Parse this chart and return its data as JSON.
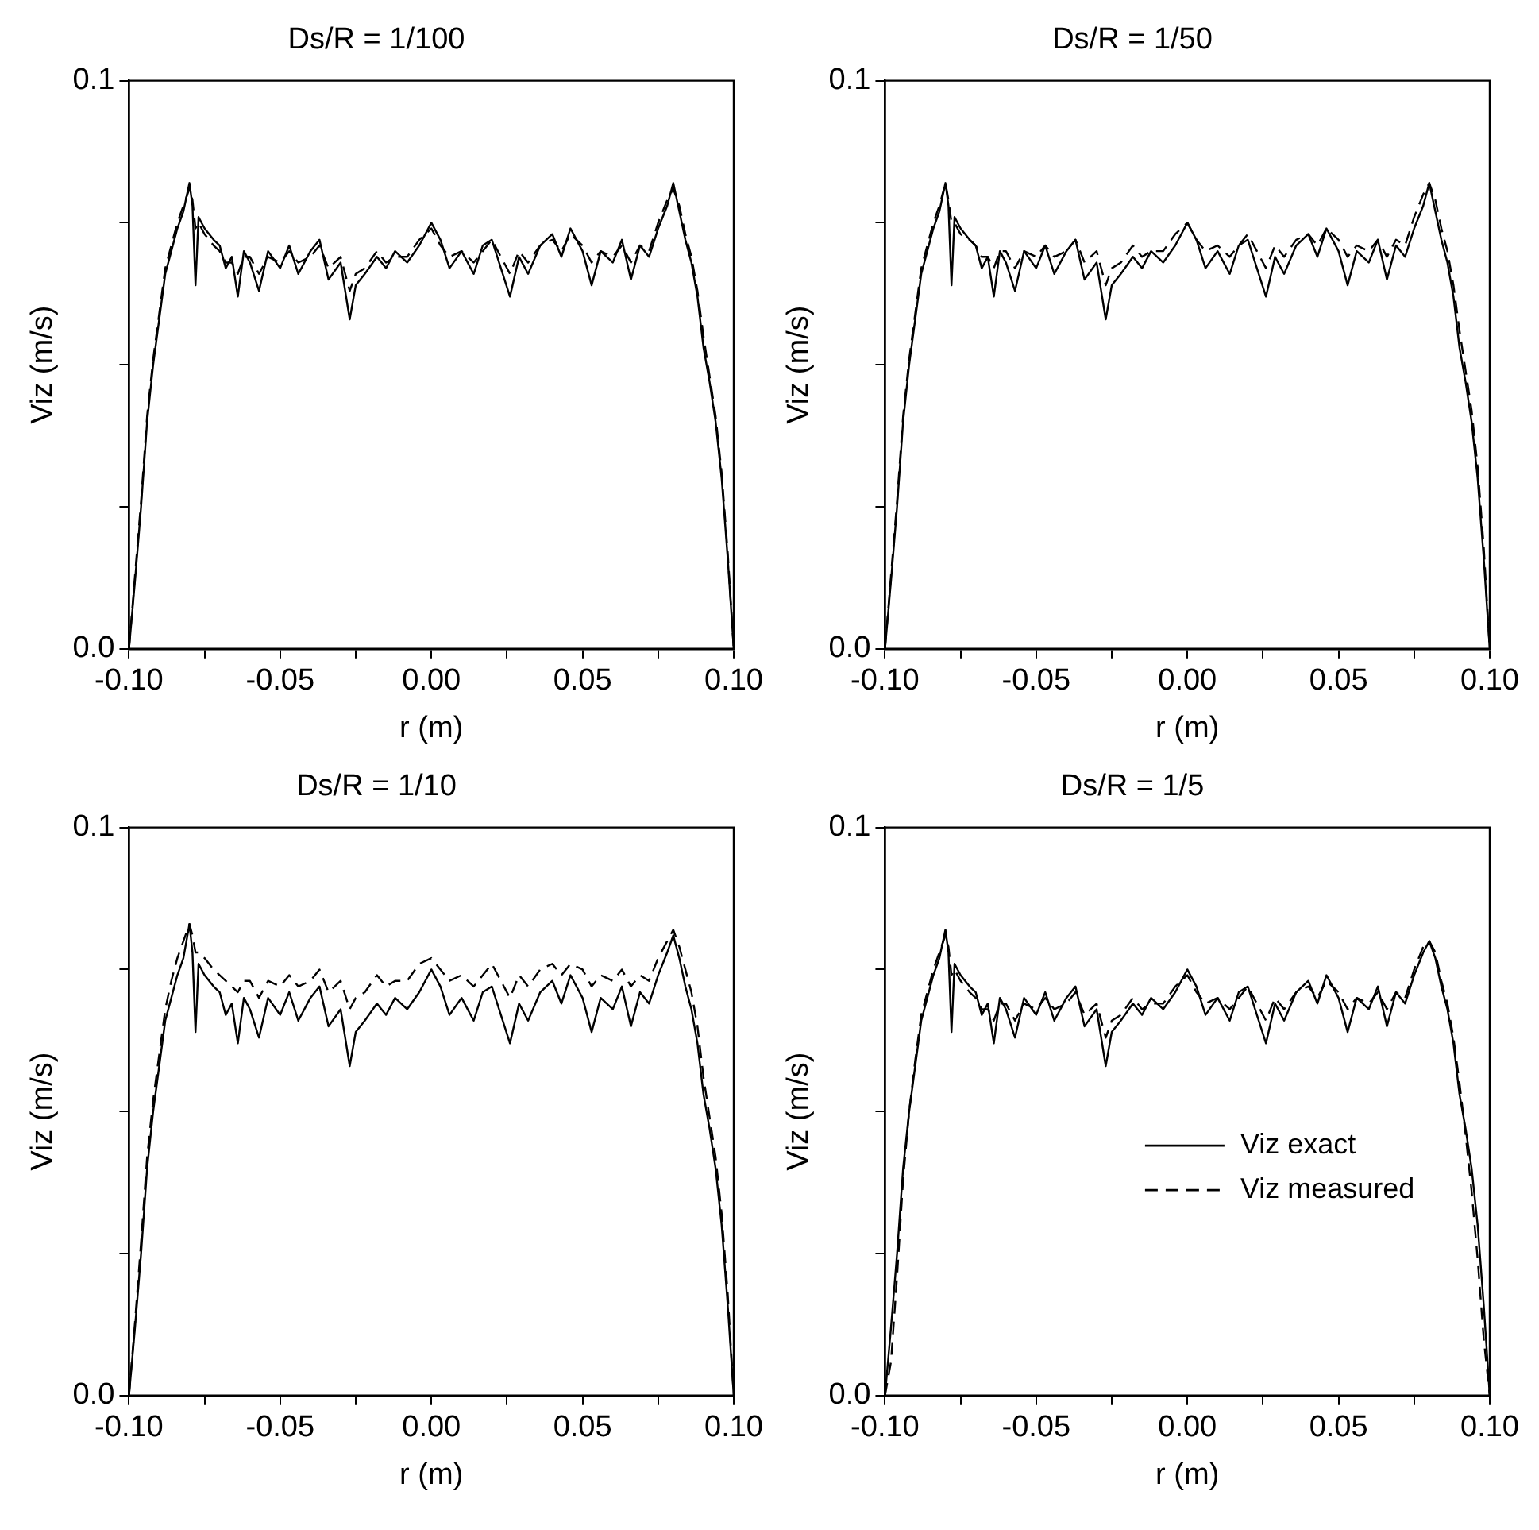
{
  "chart_data": [
    {
      "type": "line",
      "title": "Ds/R = 1/100",
      "xlabel": "r (m)",
      "ylabel": "Viz (m/s)",
      "xlim": [
        -0.1,
        0.1
      ],
      "ylim": [
        0,
        0.1
      ],
      "legend": false,
      "grid": false,
      "marker": "none",
      "xticks": [
        {
          "value": -0.1,
          "label": "-0.10"
        },
        {
          "value": -0.075,
          "label": null
        },
        {
          "value": -0.05,
          "label": "-0.05"
        },
        {
          "value": -0.025,
          "label": null
        },
        {
          "value": 0,
          "label": "0.00"
        },
        {
          "value": 0.025,
          "label": null
        },
        {
          "value": 0.05,
          "label": "0.05"
        },
        {
          "value": 0.075,
          "label": null
        },
        {
          "value": 0.1,
          "label": "0.10"
        }
      ],
      "yticks": [
        {
          "value": 0,
          "label": "0.0"
        },
        {
          "value": 0.025,
          "label": null
        },
        {
          "value": 0.05,
          "label": null
        },
        {
          "value": 0.075,
          "label": null
        },
        {
          "value": 0.1,
          "label": "0.1"
        }
      ],
      "x": [
        -0.1,
        -0.098,
        -0.096,
        -0.094,
        -0.092,
        -0.09,
        -0.088,
        -0.086,
        -0.084,
        -0.082,
        -0.08,
        -0.079,
        -0.078,
        -0.077,
        -0.075,
        -0.072,
        -0.07,
        -0.068,
        -0.066,
        -0.064,
        -0.062,
        -0.06,
        -0.057,
        -0.054,
        -0.05,
        -0.047,
        -0.044,
        -0.04,
        -0.037,
        -0.034,
        -0.03,
        -0.027,
        -0.025,
        -0.022,
        -0.018,
        -0.015,
        -0.012,
        -0.008,
        -0.004,
        0,
        0.003,
        0.006,
        0.01,
        0.014,
        0.017,
        0.02,
        0.023,
        0.026,
        0.029,
        0.032,
        0.036,
        0.04,
        0.043,
        0.046,
        0.05,
        0.053,
        0.056,
        0.06,
        0.063,
        0.066,
        0.069,
        0.072,
        0.075,
        0.078,
        0.08,
        0.082,
        0.084,
        0.086,
        0.088,
        0.09,
        0.092,
        0.094,
        0.096,
        0.098,
        0.1
      ],
      "series": [
        {
          "color": "#000000",
          "line_style": "solid",
          "values": [
            0,
            0.012,
            0.025,
            0.04,
            0.05,
            0.058,
            0.066,
            0.07,
            0.074,
            0.077,
            0.082,
            0.078,
            0.064,
            0.076,
            0.074,
            0.072,
            0.071,
            0.067,
            0.069,
            0.062,
            0.07,
            0.068,
            0.063,
            0.07,
            0.067,
            0.071,
            0.066,
            0.07,
            0.072,
            0.065,
            0.068,
            0.058,
            0.064,
            0.066,
            0.069,
            0.067,
            0.07,
            0.068,
            0.071,
            0.075,
            0.072,
            0.067,
            0.07,
            0.066,
            0.071,
            0.072,
            0.067,
            0.062,
            0.069,
            0.066,
            0.071,
            0.073,
            0.069,
            0.074,
            0.07,
            0.064,
            0.07,
            0.068,
            0.072,
            0.065,
            0.071,
            0.069,
            0.074,
            0.078,
            0.082,
            0.077,
            0.072,
            0.068,
            0.062,
            0.053,
            0.047,
            0.04,
            0.03,
            0.016,
            0
          ]
        },
        {
          "color": "#000000",
          "line_style": "dashed",
          "values": [
            0,
            0.013,
            0.026,
            0.041,
            0.051,
            0.059,
            0.067,
            0.071,
            0.075,
            0.078,
            0.081,
            0.079,
            0.074,
            0.075,
            0.073,
            0.071,
            0.07,
            0.068,
            0.068,
            0.066,
            0.069,
            0.069,
            0.066,
            0.069,
            0.068,
            0.07,
            0.068,
            0.069,
            0.071,
            0.067,
            0.069,
            0.063,
            0.066,
            0.067,
            0.07,
            0.068,
            0.069,
            0.069,
            0.072,
            0.074,
            0.071,
            0.069,
            0.07,
            0.068,
            0.07,
            0.072,
            0.069,
            0.066,
            0.07,
            0.068,
            0.071,
            0.072,
            0.07,
            0.073,
            0.071,
            0.068,
            0.07,
            0.069,
            0.071,
            0.068,
            0.071,
            0.07,
            0.075,
            0.079,
            0.081,
            0.078,
            0.073,
            0.069,
            0.063,
            0.055,
            0.048,
            0.041,
            0.031,
            0.017,
            0
          ]
        }
      ]
    },
    {
      "type": "line",
      "title": "Ds/R = 1/50",
      "xlabel": "r (m)",
      "ylabel": "Viz (m/s)",
      "xlim": [
        -0.1,
        0.1
      ],
      "ylim": [
        0,
        0.1
      ],
      "legend": false,
      "grid": false,
      "marker": "none",
      "xticks": [
        {
          "value": -0.1,
          "label": "-0.10"
        },
        {
          "value": -0.075,
          "label": null
        },
        {
          "value": -0.05,
          "label": "-0.05"
        },
        {
          "value": -0.025,
          "label": null
        },
        {
          "value": 0,
          "label": "0.00"
        },
        {
          "value": 0.025,
          "label": null
        },
        {
          "value": 0.05,
          "label": "0.05"
        },
        {
          "value": 0.075,
          "label": null
        },
        {
          "value": 0.1,
          "label": "0.10"
        }
      ],
      "yticks": [
        {
          "value": 0,
          "label": "0.0"
        },
        {
          "value": 0.025,
          "label": null
        },
        {
          "value": 0.05,
          "label": null
        },
        {
          "value": 0.075,
          "label": null
        },
        {
          "value": 0.1,
          "label": "0.1"
        }
      ],
      "x": [
        -0.1,
        -0.098,
        -0.096,
        -0.094,
        -0.092,
        -0.09,
        -0.088,
        -0.086,
        -0.084,
        -0.082,
        -0.08,
        -0.079,
        -0.078,
        -0.077,
        -0.075,
        -0.072,
        -0.07,
        -0.068,
        -0.066,
        -0.064,
        -0.062,
        -0.06,
        -0.057,
        -0.054,
        -0.05,
        -0.047,
        -0.044,
        -0.04,
        -0.037,
        -0.034,
        -0.03,
        -0.027,
        -0.025,
        -0.022,
        -0.018,
        -0.015,
        -0.012,
        -0.008,
        -0.004,
        0,
        0.003,
        0.006,
        0.01,
        0.014,
        0.017,
        0.02,
        0.023,
        0.026,
        0.029,
        0.032,
        0.036,
        0.04,
        0.043,
        0.046,
        0.05,
        0.053,
        0.056,
        0.06,
        0.063,
        0.066,
        0.069,
        0.072,
        0.075,
        0.078,
        0.08,
        0.082,
        0.084,
        0.086,
        0.088,
        0.09,
        0.092,
        0.094,
        0.096,
        0.098,
        0.1
      ],
      "series": [
        {
          "color": "#000000",
          "line_style": "solid",
          "values": [
            0,
            0.012,
            0.025,
            0.04,
            0.05,
            0.058,
            0.066,
            0.07,
            0.074,
            0.077,
            0.082,
            0.078,
            0.064,
            0.076,
            0.074,
            0.072,
            0.071,
            0.067,
            0.069,
            0.062,
            0.07,
            0.068,
            0.063,
            0.07,
            0.067,
            0.071,
            0.066,
            0.07,
            0.072,
            0.065,
            0.068,
            0.058,
            0.064,
            0.066,
            0.069,
            0.067,
            0.07,
            0.068,
            0.071,
            0.075,
            0.072,
            0.067,
            0.07,
            0.066,
            0.071,
            0.072,
            0.067,
            0.062,
            0.069,
            0.066,
            0.071,
            0.073,
            0.069,
            0.074,
            0.07,
            0.064,
            0.07,
            0.068,
            0.072,
            0.065,
            0.071,
            0.069,
            0.074,
            0.078,
            0.082,
            0.077,
            0.072,
            0.068,
            0.062,
            0.053,
            0.047,
            0.04,
            0.03,
            0.016,
            0
          ]
        },
        {
          "color": "#000000",
          "line_style": "dashed",
          "values": [
            0,
            0.013,
            0.026,
            0.041,
            0.051,
            0.059,
            0.067,
            0.071,
            0.075,
            0.078,
            0.082,
            0.079,
            0.075,
            0.075,
            0.073,
            0.072,
            0.071,
            0.069,
            0.069,
            0.067,
            0.07,
            0.07,
            0.067,
            0.07,
            0.069,
            0.071,
            0.069,
            0.07,
            0.072,
            0.068,
            0.07,
            0.064,
            0.067,
            0.068,
            0.071,
            0.069,
            0.07,
            0.07,
            0.073,
            0.075,
            0.072,
            0.07,
            0.071,
            0.069,
            0.071,
            0.073,
            0.07,
            0.067,
            0.071,
            0.069,
            0.072,
            0.073,
            0.071,
            0.074,
            0.072,
            0.069,
            0.071,
            0.07,
            0.072,
            0.069,
            0.072,
            0.071,
            0.076,
            0.08,
            0.082,
            0.079,
            0.074,
            0.07,
            0.064,
            0.056,
            0.049,
            0.042,
            0.032,
            0.018,
            0
          ]
        }
      ]
    },
    {
      "type": "line",
      "title": "Ds/R = 1/10",
      "xlabel": "r (m)",
      "ylabel": "Viz (m/s)",
      "xlim": [
        -0.1,
        0.1
      ],
      "ylim": [
        0,
        0.1
      ],
      "legend": false,
      "grid": false,
      "marker": "none",
      "xticks": [
        {
          "value": -0.1,
          "label": "-0.10"
        },
        {
          "value": -0.075,
          "label": null
        },
        {
          "value": -0.05,
          "label": "-0.05"
        },
        {
          "value": -0.025,
          "label": null
        },
        {
          "value": 0,
          "label": "0.00"
        },
        {
          "value": 0.025,
          "label": null
        },
        {
          "value": 0.05,
          "label": "0.05"
        },
        {
          "value": 0.075,
          "label": null
        },
        {
          "value": 0.1,
          "label": "0.10"
        }
      ],
      "yticks": [
        {
          "value": 0,
          "label": "0.0"
        },
        {
          "value": 0.025,
          "label": null
        },
        {
          "value": 0.05,
          "label": null
        },
        {
          "value": 0.075,
          "label": null
        },
        {
          "value": 0.1,
          "label": "0.1"
        }
      ],
      "x": [
        -0.1,
        -0.098,
        -0.096,
        -0.094,
        -0.092,
        -0.09,
        -0.088,
        -0.086,
        -0.084,
        -0.082,
        -0.08,
        -0.079,
        -0.078,
        -0.077,
        -0.075,
        -0.072,
        -0.07,
        -0.068,
        -0.066,
        -0.064,
        -0.062,
        -0.06,
        -0.057,
        -0.054,
        -0.05,
        -0.047,
        -0.044,
        -0.04,
        -0.037,
        -0.034,
        -0.03,
        -0.027,
        -0.025,
        -0.022,
        -0.018,
        -0.015,
        -0.012,
        -0.008,
        -0.004,
        0,
        0.003,
        0.006,
        0.01,
        0.014,
        0.017,
        0.02,
        0.023,
        0.026,
        0.029,
        0.032,
        0.036,
        0.04,
        0.043,
        0.046,
        0.05,
        0.053,
        0.056,
        0.06,
        0.063,
        0.066,
        0.069,
        0.072,
        0.075,
        0.078,
        0.08,
        0.082,
        0.084,
        0.086,
        0.088,
        0.09,
        0.092,
        0.094,
        0.096,
        0.098,
        0.1
      ],
      "series": [
        {
          "color": "#000000",
          "line_style": "solid",
          "values": [
            0,
            0.012,
            0.025,
            0.04,
            0.05,
            0.058,
            0.066,
            0.07,
            0.074,
            0.077,
            0.083,
            0.078,
            0.064,
            0.076,
            0.074,
            0.072,
            0.071,
            0.067,
            0.069,
            0.062,
            0.07,
            0.068,
            0.063,
            0.07,
            0.067,
            0.071,
            0.066,
            0.07,
            0.072,
            0.065,
            0.068,
            0.058,
            0.064,
            0.066,
            0.069,
            0.067,
            0.07,
            0.068,
            0.071,
            0.075,
            0.072,
            0.067,
            0.07,
            0.066,
            0.071,
            0.072,
            0.067,
            0.062,
            0.069,
            0.066,
            0.071,
            0.073,
            0.069,
            0.074,
            0.07,
            0.064,
            0.07,
            0.068,
            0.072,
            0.065,
            0.071,
            0.069,
            0.074,
            0.078,
            0.081,
            0.077,
            0.072,
            0.068,
            0.062,
            0.053,
            0.047,
            0.04,
            0.03,
            0.016,
            0
          ]
        },
        {
          "color": "#000000",
          "line_style": "dashed",
          "values": [
            0,
            0.013,
            0.027,
            0.042,
            0.052,
            0.06,
            0.068,
            0.073,
            0.077,
            0.08,
            0.083,
            0.081,
            0.078,
            0.078,
            0.077,
            0.075,
            0.074,
            0.073,
            0.072,
            0.071,
            0.073,
            0.073,
            0.07,
            0.073,
            0.072,
            0.074,
            0.072,
            0.073,
            0.075,
            0.071,
            0.073,
            0.068,
            0.07,
            0.071,
            0.074,
            0.072,
            0.073,
            0.073,
            0.076,
            0.077,
            0.075,
            0.073,
            0.074,
            0.072,
            0.074,
            0.076,
            0.073,
            0.07,
            0.074,
            0.072,
            0.075,
            0.076,
            0.074,
            0.076,
            0.075,
            0.072,
            0.074,
            0.073,
            0.075,
            0.072,
            0.074,
            0.073,
            0.077,
            0.08,
            0.082,
            0.079,
            0.075,
            0.071,
            0.065,
            0.056,
            0.049,
            0.042,
            0.032,
            0.018,
            0
          ]
        }
      ]
    },
    {
      "type": "line",
      "title": "Ds/R = 1/5",
      "xlabel": "r (m)",
      "ylabel": "Viz (m/s)",
      "xlim": [
        -0.1,
        0.1
      ],
      "ylim": [
        0,
        0.1
      ],
      "legend": "right",
      "grid": false,
      "marker": "none",
      "xticks": [
        {
          "value": -0.1,
          "label": "-0.10"
        },
        {
          "value": -0.075,
          "label": null
        },
        {
          "value": -0.05,
          "label": "-0.05"
        },
        {
          "value": -0.025,
          "label": null
        },
        {
          "value": 0,
          "label": "0.00"
        },
        {
          "value": 0.025,
          "label": null
        },
        {
          "value": 0.05,
          "label": "0.05"
        },
        {
          "value": 0.075,
          "label": null
        },
        {
          "value": 0.1,
          "label": "0.10"
        }
      ],
      "yticks": [
        {
          "value": 0,
          "label": "0.0"
        },
        {
          "value": 0.025,
          "label": null
        },
        {
          "value": 0.05,
          "label": null
        },
        {
          "value": 0.075,
          "label": null
        },
        {
          "value": 0.1,
          "label": "0.1"
        }
      ],
      "x": [
        -0.1,
        -0.098,
        -0.096,
        -0.094,
        -0.092,
        -0.09,
        -0.088,
        -0.086,
        -0.084,
        -0.082,
        -0.08,
        -0.079,
        -0.078,
        -0.077,
        -0.075,
        -0.072,
        -0.07,
        -0.068,
        -0.066,
        -0.064,
        -0.062,
        -0.06,
        -0.057,
        -0.054,
        -0.05,
        -0.047,
        -0.044,
        -0.04,
        -0.037,
        -0.034,
        -0.03,
        -0.027,
        -0.025,
        -0.022,
        -0.018,
        -0.015,
        -0.012,
        -0.008,
        -0.004,
        0,
        0.003,
        0.006,
        0.01,
        0.014,
        0.017,
        0.02,
        0.023,
        0.026,
        0.029,
        0.032,
        0.036,
        0.04,
        0.043,
        0.046,
        0.05,
        0.053,
        0.056,
        0.06,
        0.063,
        0.066,
        0.069,
        0.072,
        0.075,
        0.078,
        0.08,
        0.082,
        0.084,
        0.086,
        0.088,
        0.09,
        0.092,
        0.094,
        0.096,
        0.098,
        0.1
      ],
      "series": [
        {
          "name": "Viz exact",
          "color": "#000000",
          "line_style": "solid",
          "values": [
            0,
            0.012,
            0.025,
            0.04,
            0.05,
            0.058,
            0.066,
            0.07,
            0.074,
            0.077,
            0.082,
            0.078,
            0.064,
            0.076,
            0.074,
            0.072,
            0.071,
            0.067,
            0.069,
            0.062,
            0.07,
            0.068,
            0.063,
            0.07,
            0.067,
            0.071,
            0.066,
            0.07,
            0.072,
            0.065,
            0.068,
            0.058,
            0.064,
            0.066,
            0.069,
            0.067,
            0.07,
            0.068,
            0.071,
            0.075,
            0.072,
            0.067,
            0.07,
            0.066,
            0.071,
            0.072,
            0.067,
            0.062,
            0.069,
            0.066,
            0.071,
            0.073,
            0.069,
            0.074,
            0.07,
            0.064,
            0.07,
            0.068,
            0.072,
            0.065,
            0.071,
            0.069,
            0.074,
            0.078,
            0.08,
            0.077,
            0.072,
            0.068,
            0.062,
            0.053,
            0.047,
            0.04,
            0.03,
            0.016,
            0
          ]
        },
        {
          "name": "Viz measured",
          "color": "#000000",
          "line_style": "dashed",
          "values": [
            0,
            0.006,
            0.021,
            0.038,
            0.05,
            0.059,
            0.067,
            0.071,
            0.075,
            0.078,
            0.081,
            0.079,
            0.074,
            0.075,
            0.073,
            0.071,
            0.07,
            0.068,
            0.068,
            0.066,
            0.069,
            0.069,
            0.066,
            0.069,
            0.068,
            0.07,
            0.068,
            0.069,
            0.071,
            0.067,
            0.069,
            0.063,
            0.066,
            0.067,
            0.07,
            0.068,
            0.069,
            0.069,
            0.072,
            0.074,
            0.071,
            0.069,
            0.07,
            0.068,
            0.07,
            0.072,
            0.069,
            0.066,
            0.07,
            0.068,
            0.071,
            0.072,
            0.07,
            0.073,
            0.071,
            0.068,
            0.07,
            0.069,
            0.071,
            0.068,
            0.071,
            0.07,
            0.075,
            0.079,
            0.08,
            0.078,
            0.073,
            0.069,
            0.063,
            0.055,
            0.046,
            0.036,
            0.024,
            0.01,
            0
          ]
        }
      ]
    }
  ]
}
